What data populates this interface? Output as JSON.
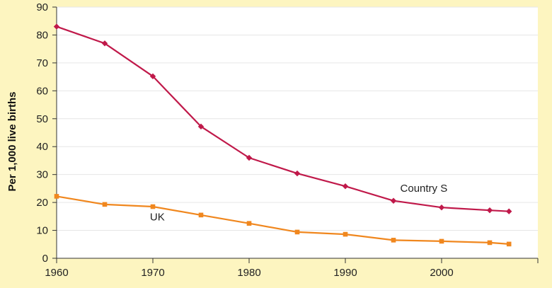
{
  "chart_data": {
    "type": "line",
    "title": "",
    "xlabel": "",
    "ylabel": "Per 1,000 live births",
    "xlim": [
      1960,
      2010
    ],
    "ylim": [
      0,
      90
    ],
    "x_ticks": [
      1960,
      1970,
      1980,
      1990,
      2000
    ],
    "y_ticks": [
      0,
      10,
      20,
      30,
      40,
      50,
      60,
      70,
      80,
      90
    ],
    "grid": true,
    "series": [
      {
        "name": "Country S",
        "color": "#c0194a",
        "marker": "diamond",
        "x": [
          1960,
          1965,
          1970,
          1975,
          1980,
          1985,
          1990,
          1995,
          2000,
          2005,
          2007
        ],
        "y": [
          83,
          77,
          65.2,
          47.2,
          36,
          30.4,
          25.8,
          20.6,
          18.2,
          17.2,
          16.8
        ]
      },
      {
        "name": "UK",
        "color": "#f0871e",
        "marker": "square",
        "x": [
          1960,
          1965,
          1970,
          1975,
          1980,
          1985,
          1990,
          1995,
          2000,
          2005,
          2007
        ],
        "y": [
          22.2,
          19.3,
          18.5,
          15.5,
          12.5,
          9.4,
          8.6,
          6.5,
          6.1,
          5.6,
          5.1
        ]
      }
    ]
  }
}
